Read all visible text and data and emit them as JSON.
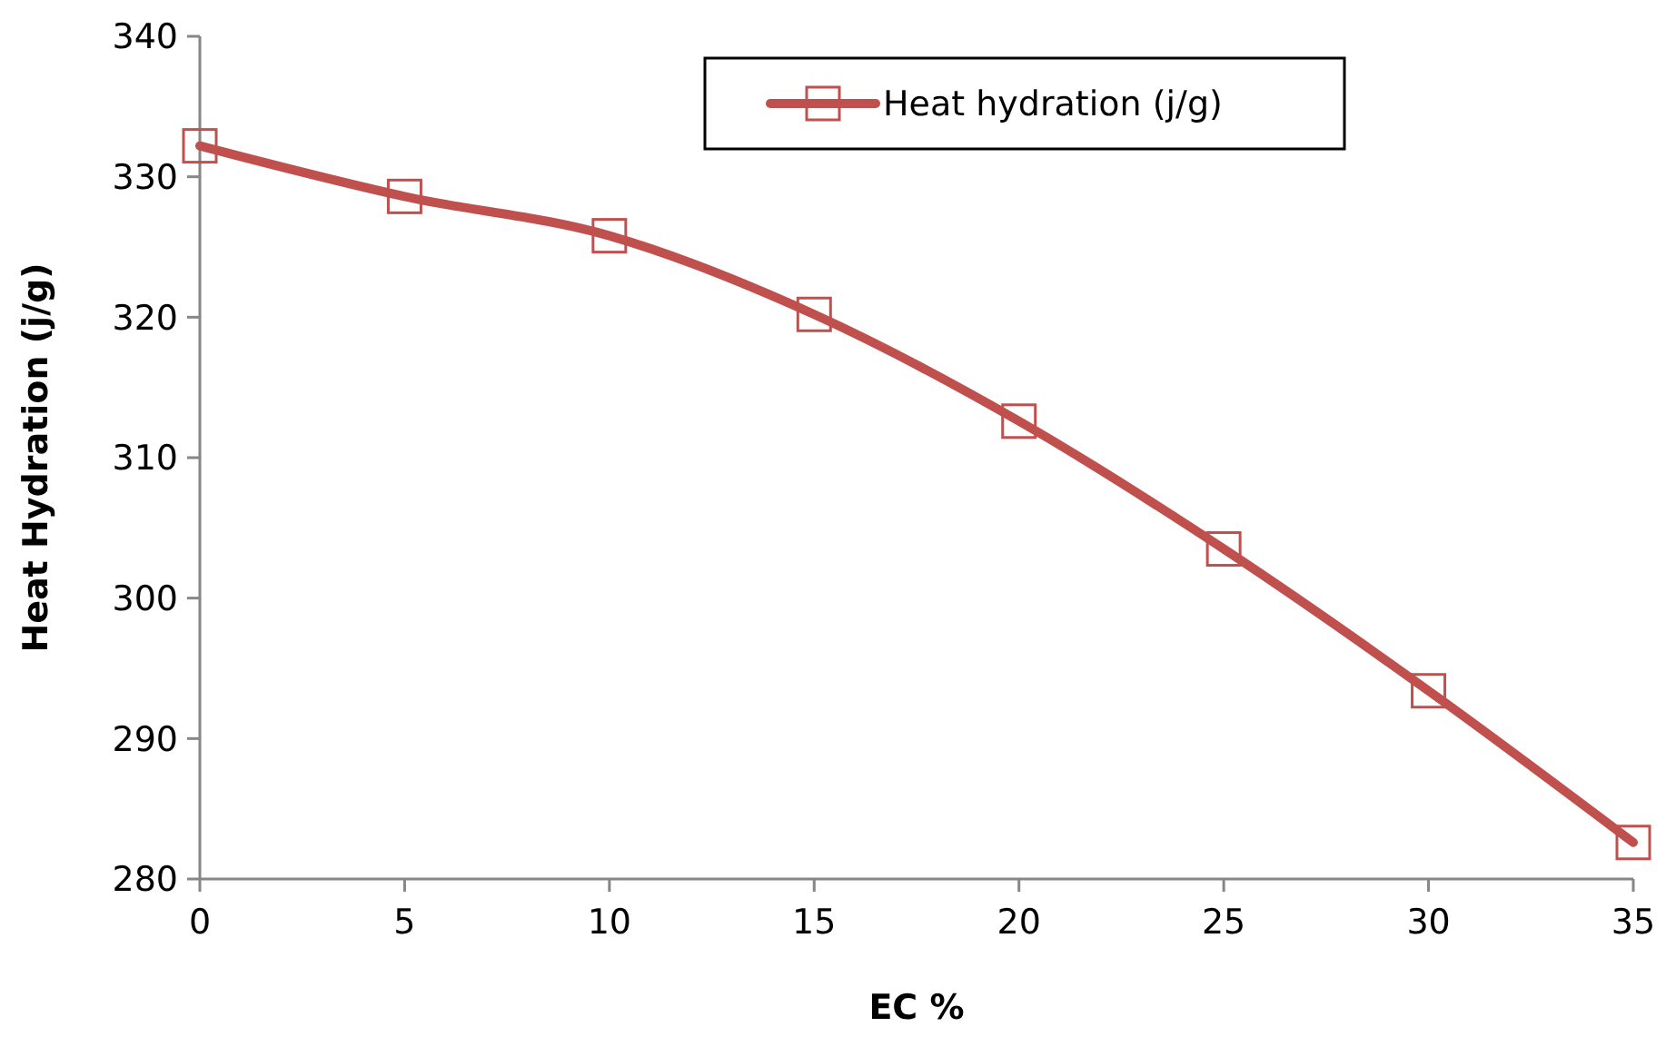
{
  "chart_data": {
    "type": "line",
    "xlabel": "EC  %",
    "ylabel": "Heat Hydration  (j/g)",
    "x": [
      0,
      5,
      10,
      15,
      20,
      25,
      30,
      35
    ],
    "series": [
      {
        "name": "Heat hydration  (j/g)",
        "color": "#c0504d",
        "values": [
          332.2,
          328.6,
          325.8,
          320.2,
          312.6,
          303.5,
          293.4,
          282.6
        ]
      }
    ],
    "xlim": [
      0,
      35
    ],
    "xticks": [
      0,
      5,
      10,
      15,
      20,
      25,
      30,
      35
    ],
    "ylim": [
      280,
      340
    ],
    "yticks": [
      280,
      290,
      300,
      310,
      320,
      330,
      340
    ],
    "grid": false,
    "legend": "top right",
    "marker": "square",
    "line_style": "solid"
  }
}
